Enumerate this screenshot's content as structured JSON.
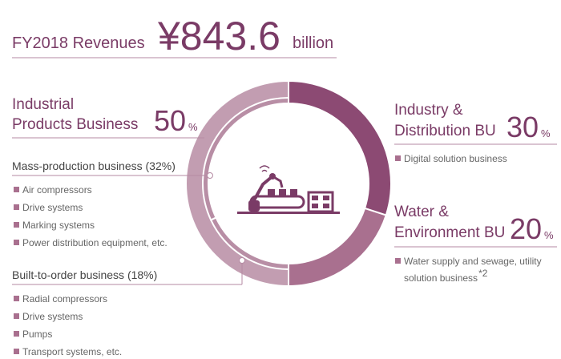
{
  "chart_data": {
    "type": "pie",
    "title": "FY2018 Revenues",
    "total": "¥843.6",
    "total_unit": "billion",
    "unit": "%",
    "categories": [
      [
        "Industry &",
        "Distribution BU"
      ],
      [
        "Water &",
        "Environment BU"
      ],
      [
        "Industrial",
        "Products Business"
      ]
    ],
    "values": [
      30,
      20,
      50
    ],
    "colors": [
      "#8c4a73",
      "#a9708f",
      "#c29db1"
    ],
    "details": [
      [
        "Digital solution business"
      ],
      [
        "Water supply and sewage, utility",
        "solution business"
      ],
      []
    ],
    "footnote": "*2",
    "sub_segments": [
      {
        "name": "Mass-production business (32%)",
        "value": 32,
        "items": [
          "Air compressors",
          "Drive systems",
          "Marking systems",
          "Power distribution equipment, etc."
        ]
      },
      {
        "name": "Built-to-order business (18%)",
        "value": 18,
        "items": [
          "Radial compressors",
          "Drive systems",
          "Pumps",
          "Transport systems, etc."
        ]
      }
    ]
  }
}
